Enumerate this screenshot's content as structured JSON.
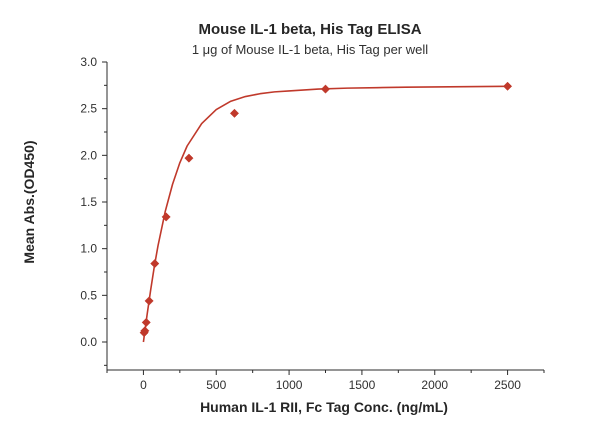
{
  "chart_data": {
    "type": "scatter",
    "title": "Mouse IL-1 beta, His Tag ELISA",
    "subtitle": "1 μg of Mouse IL-1 beta, His Tag per well",
    "xlabel": "Human IL-1 RII, Fc Tag Conc. (ng/mL)",
    "ylabel": "Mean Abs.(OD450)",
    "xlim": [
      -250,
      2750
    ],
    "ylim": [
      -0.3,
      3.0
    ],
    "x_ticks": [
      0,
      500,
      1000,
      1500,
      2000,
      2500
    ],
    "y_ticks": [
      0.0,
      0.5,
      1.0,
      1.5,
      2.0,
      2.5,
      3.0
    ],
    "x_tick_labels": [
      "0",
      "500",
      "1000",
      "1500",
      "2000",
      "2500"
    ],
    "y_tick_labels": [
      "0.0",
      "0.5",
      "1.0",
      "1.5",
      "2.0",
      "2.5",
      "3.0"
    ],
    "grid": false,
    "legend": "none",
    "series": [
      {
        "marker": "diamond",
        "x": [
          4.9,
          9.8,
          19.5,
          39,
          78,
          156,
          312.5,
          625,
          1250,
          2500
        ],
        "y": [
          0.1,
          0.12,
          0.21,
          0.44,
          0.84,
          1.34,
          1.97,
          2.45,
          2.71,
          2.74
        ]
      }
    ],
    "fit_curve": {
      "type": "saturation",
      "description_from_figure": "smooth fitted curve through points",
      "x": [
        0,
        25,
        50,
        75,
        100,
        150,
        200,
        250,
        300,
        400,
        500,
        600,
        700,
        800,
        900,
        1000,
        1200,
        1400,
        1600,
        1800,
        2000,
        2200,
        2400,
        2500
      ],
      "y": [
        0.0,
        0.29,
        0.56,
        0.81,
        1.03,
        1.4,
        1.69,
        1.92,
        2.1,
        2.34,
        2.49,
        2.58,
        2.63,
        2.66,
        2.68,
        2.69,
        2.71,
        2.72,
        2.725,
        2.73,
        2.733,
        2.736,
        2.738,
        2.74
      ]
    },
    "colors": {
      "marker": "#c0392b",
      "curve": "#c0392b",
      "axis": "#2b2b2b",
      "text": "#262626"
    }
  }
}
